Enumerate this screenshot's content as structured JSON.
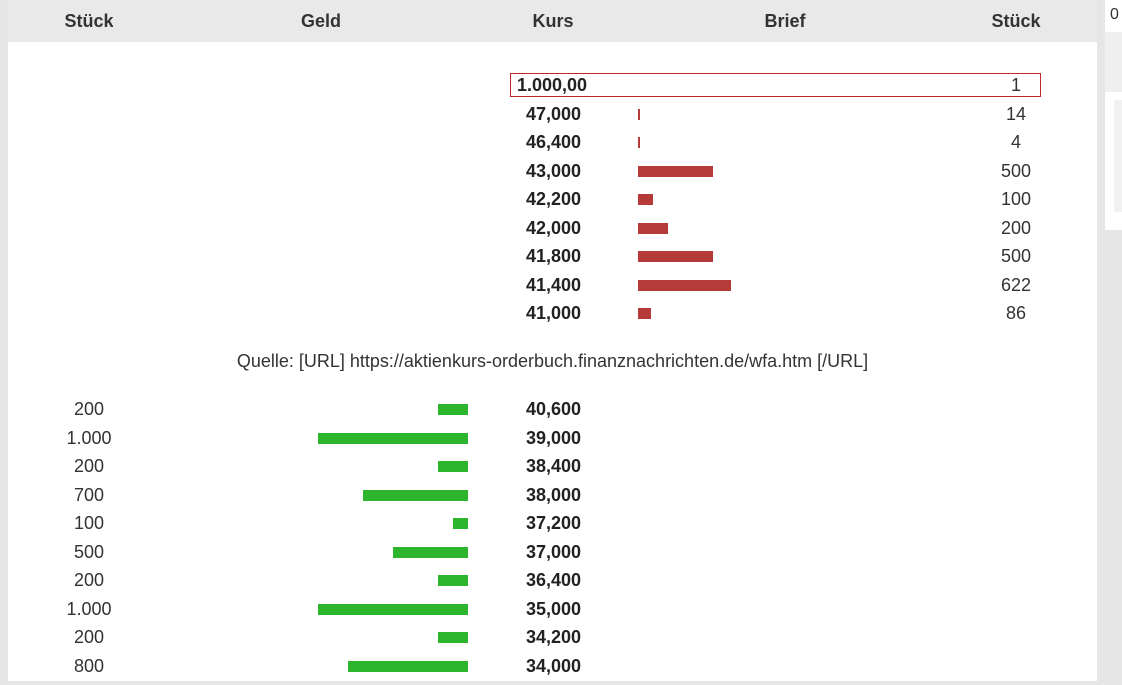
{
  "header": {
    "bid_qty": "Stück",
    "bid": "Geld",
    "price": "Kurs",
    "ask": "Brief",
    "ask_qty": "Stück"
  },
  "colors": {
    "ask_bar": "#b53a3a",
    "bid_bar": "#2db52d",
    "highlight": "#c0262b"
  },
  "asks": [
    {
      "price": "1.000,00",
      "qty": "1",
      "amount": 1
    },
    {
      "price": "47,000",
      "qty": "14",
      "amount": 14
    },
    {
      "price": "46,400",
      "qty": "4",
      "amount": 4
    },
    {
      "price": "43,000",
      "qty": "500",
      "amount": 500
    },
    {
      "price": "42,200",
      "qty": "100",
      "amount": 100
    },
    {
      "price": "42,000",
      "qty": "200",
      "amount": 200
    },
    {
      "price": "41,800",
      "qty": "500",
      "amount": 500
    },
    {
      "price": "41,400",
      "qty": "622",
      "amount": 622
    },
    {
      "price": "41,000",
      "qty": "86",
      "amount": 86
    }
  ],
  "source": "Quelle: [URL] https://aktienkurs-orderbuch.finanznachrichten.de/wfa.htm [/URL]",
  "bids": [
    {
      "price": "40,600",
      "qty": "200",
      "amount": 200
    },
    {
      "price": "39,000",
      "qty": "1.000",
      "amount": 1000
    },
    {
      "price": "38,400",
      "qty": "200",
      "amount": 200
    },
    {
      "price": "38,000",
      "qty": "700",
      "amount": 700
    },
    {
      "price": "37,200",
      "qty": "100",
      "amount": 100
    },
    {
      "price": "37,000",
      "qty": "500",
      "amount": 500
    },
    {
      "price": "36,400",
      "qty": "200",
      "amount": 200
    },
    {
      "price": "35,000",
      "qty": "1.000",
      "amount": 1000
    },
    {
      "price": "34,200",
      "qty": "200",
      "amount": 200
    },
    {
      "price": "34,000",
      "qty": "800",
      "amount": 800
    }
  ],
  "side_number": "0"
}
